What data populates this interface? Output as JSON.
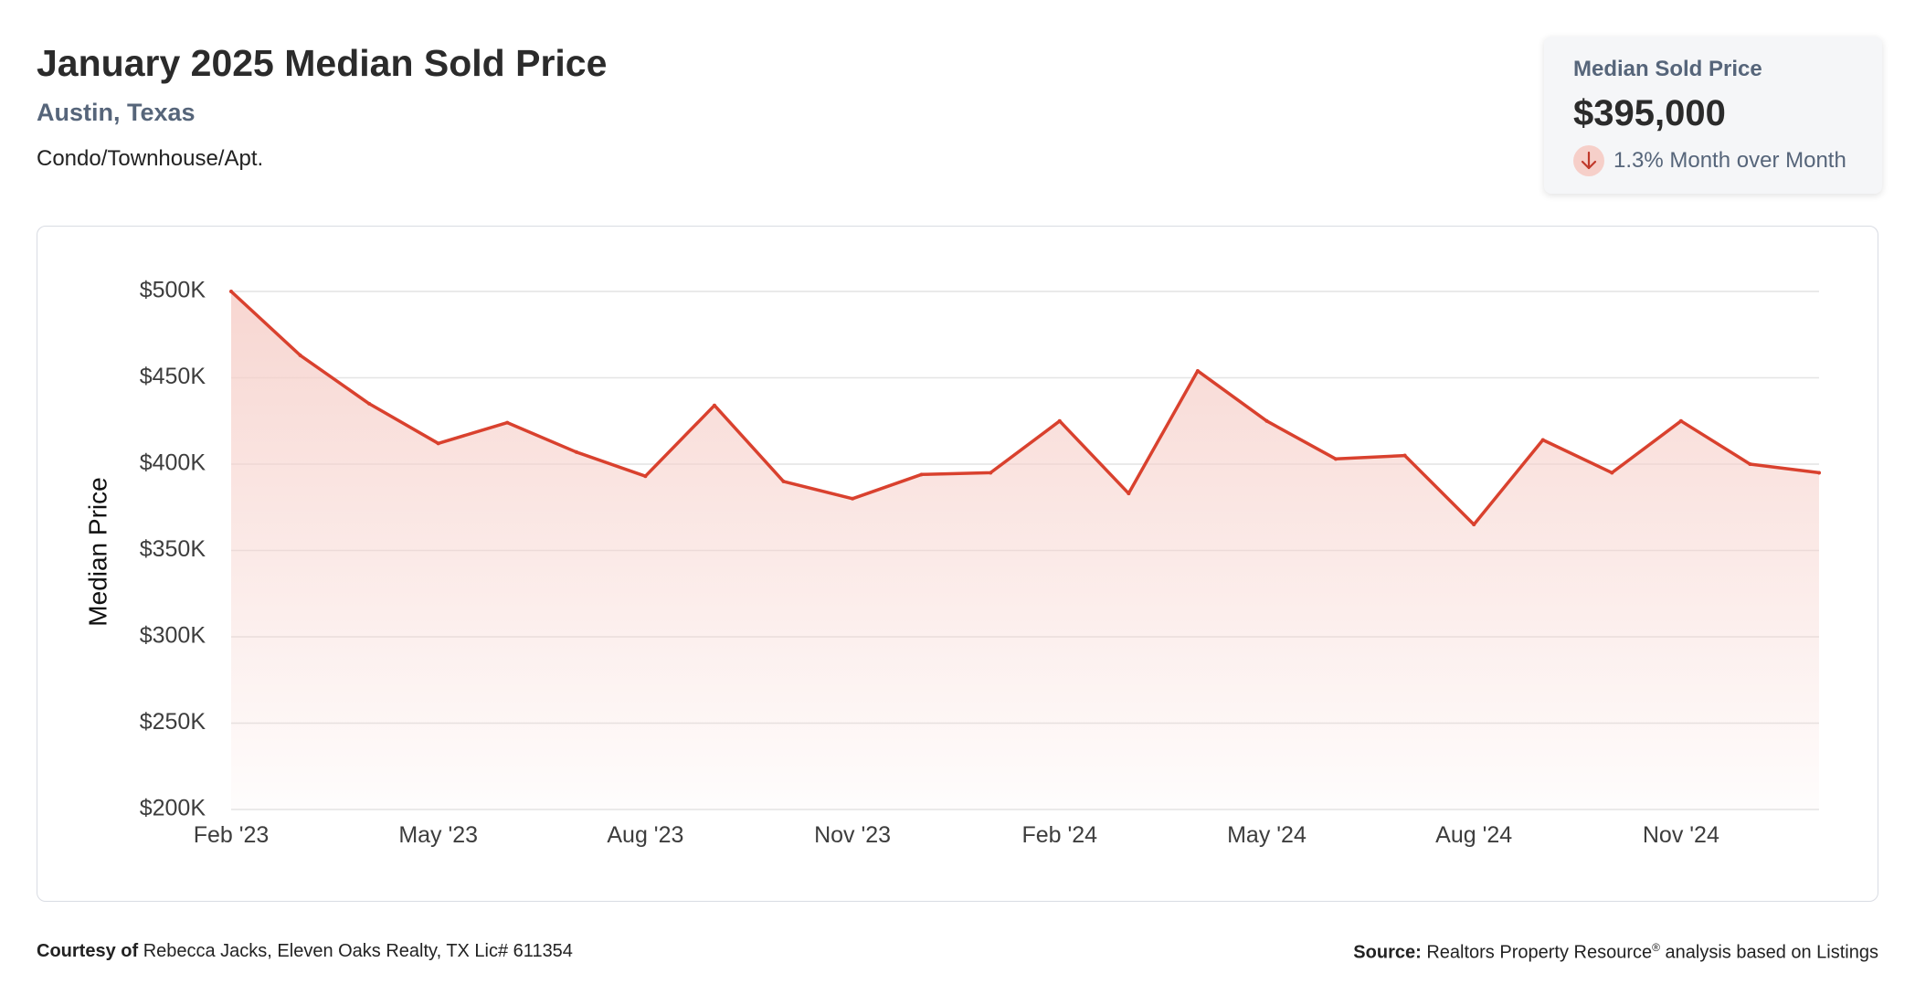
{
  "header": {
    "title": "January 2025 Median Sold Price",
    "location": "Austin, Texas",
    "property_type": "Condo/Townhouse/Apt."
  },
  "summary": {
    "label": "Median Sold Price",
    "value": "$395,000",
    "change": "1.3% Month over Month",
    "change_direction": "down",
    "badge_color": "#f6cfc9",
    "arrow_color": "#c0392b"
  },
  "chart_data": {
    "type": "area",
    "ylabel": "Median Price",
    "xlabel": "",
    "ylim": [
      200000,
      500000
    ],
    "y_ticks": [
      {
        "value": 500000,
        "label": "$500K"
      },
      {
        "value": 450000,
        "label": "$450K"
      },
      {
        "value": 400000,
        "label": "$400K"
      },
      {
        "value": 350000,
        "label": "$350K"
      },
      {
        "value": 300000,
        "label": "$300K"
      },
      {
        "value": 250000,
        "label": "$250K"
      },
      {
        "value": 200000,
        "label": "$200K"
      }
    ],
    "x_ticks": [
      {
        "index": 0,
        "label": "Feb '23"
      },
      {
        "index": 3,
        "label": "May '23"
      },
      {
        "index": 6,
        "label": "Aug '23"
      },
      {
        "index": 9,
        "label": "Nov '23"
      },
      {
        "index": 12,
        "label": "Feb '24"
      },
      {
        "index": 15,
        "label": "May '24"
      },
      {
        "index": 18,
        "label": "Aug '24"
      },
      {
        "index": 21,
        "label": "Nov '24"
      }
    ],
    "x": [
      "Feb '23",
      "Mar '23",
      "Apr '23",
      "May '23",
      "Jun '23",
      "Jul '23",
      "Aug '23",
      "Sep '23",
      "Oct '23",
      "Nov '23",
      "Dec '23",
      "Jan '24",
      "Feb '24",
      "Mar '24",
      "Apr '24",
      "May '24",
      "Jun '24",
      "Jul '24",
      "Aug '24",
      "Sep '24",
      "Oct '24",
      "Nov '24",
      "Dec '24",
      "Jan '25"
    ],
    "values": [
      500000,
      463000,
      435000,
      412000,
      424000,
      407000,
      393000,
      434000,
      390000,
      380000,
      394000,
      395000,
      425000,
      383000,
      454000,
      425000,
      403000,
      405000,
      365000,
      414000,
      395000,
      425000,
      400000,
      395000
    ],
    "line_color": "#d9412e",
    "fill_color": "#f6cfc9",
    "grid": true
  },
  "footer": {
    "courtesy_label": "Courtesy of",
    "courtesy_text": "Rebecca Jacks, Eleven Oaks Realty, TX Lic# 611354",
    "source_label": "Source:",
    "source_text": "Realtors Property Resource",
    "source_mark": "®",
    "source_suffix": "analysis based on Listings"
  }
}
